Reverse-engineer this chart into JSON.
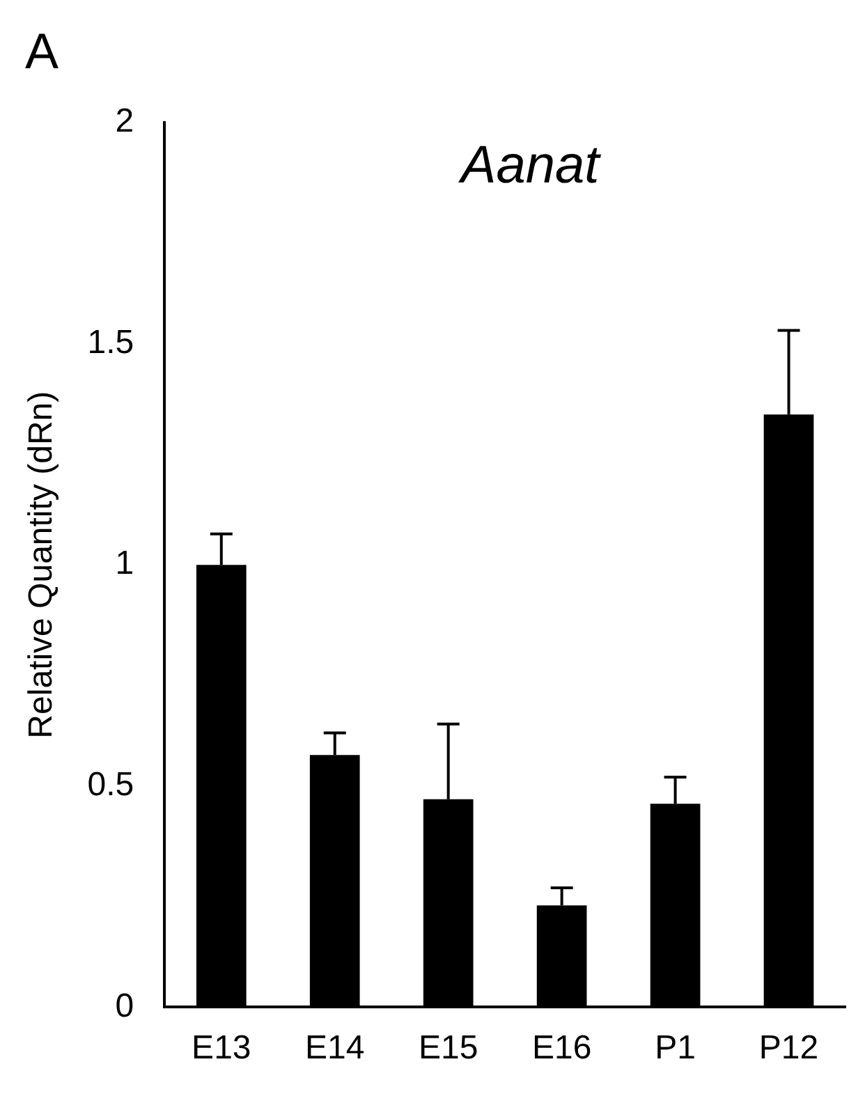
{
  "chart_data": {
    "type": "bar",
    "title": "Aanat",
    "ylabel": "Relative Quantity (dRn)",
    "annotations": [
      "A"
    ],
    "categories": [
      "E13",
      "E14",
      "E15",
      "E16",
      "P1",
      "P12"
    ],
    "values": [
      1.0,
      0.57,
      0.47,
      0.23,
      0.46,
      1.34
    ],
    "errors": [
      [
        1.0,
        1.07
      ],
      [
        0.57,
        0.62
      ],
      [
        0.47,
        0.64
      ],
      [
        0.23,
        0.27
      ],
      [
        0.46,
        0.52
      ],
      [
        1.34,
        1.53
      ]
    ],
    "color": "#000000",
    "ylim": [
      0,
      2
    ],
    "yticks": [
      0,
      0.5,
      1,
      1.5,
      2
    ],
    "grid": false,
    "legend": false
  }
}
